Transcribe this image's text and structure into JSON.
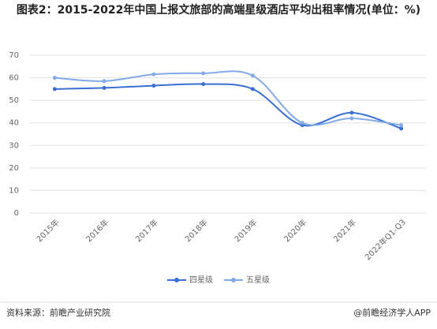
{
  "chart_data": {
    "type": "line",
    "title": "图表2：2015-2022年中国上报文旅部的高端星级酒店平均出租率情况(单位：%)",
    "categories": [
      "2015年",
      "2016年",
      "2017年",
      "2018年",
      "2019年",
      "2020年",
      "2021年",
      "2022年Q1-Q3"
    ],
    "series": [
      {
        "name": "四星级",
        "color": "#3b6fd1",
        "values": [
          55,
          55.5,
          56.5,
          57.2,
          55,
          39,
          44.5,
          37.5
        ]
      },
      {
        "name": "五星级",
        "color": "#82aae8",
        "values": [
          60,
          58.5,
          61.5,
          62,
          61,
          40,
          42,
          39
        ]
      }
    ],
    "ylim": [
      0,
      70
    ],
    "yticks": [
      0,
      10,
      20,
      30,
      40,
      50,
      60,
      70
    ],
    "grid": true,
    "legend": "bottom",
    "source": "资料来源：前瞻产业研究院",
    "brand": "@前瞻经济学人APP"
  }
}
